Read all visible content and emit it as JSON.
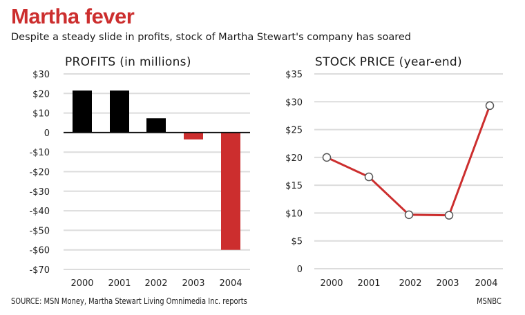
{
  "header": {
    "title": "Martha fever",
    "subtitle": "Despite a steady slide in profits, stock of Martha Stewart's company has soared"
  },
  "footer": {
    "source": "SOURCE: MSN Money, Martha Stewart Living Omnimedia Inc. reports",
    "credit": "MSNBC"
  },
  "colors": {
    "positive_bar": "#000000",
    "negative_bar": "#cc2e2e",
    "line": "#cc2e2e",
    "gridline": "#dcdcdc",
    "title": "#cc2e2e"
  },
  "chart_data": [
    {
      "type": "bar",
      "title": "PROFITS (in millions)",
      "xlabel": "",
      "ylabel": "",
      "categories": [
        "2000",
        "2001",
        "2002",
        "2003",
        "2004"
      ],
      "values": [
        21.5,
        21.5,
        7.3,
        -3.5,
        -60
      ],
      "ylim": [
        -70,
        30
      ],
      "yticks": [
        30,
        20,
        10,
        0,
        -10,
        -20,
        -30,
        -40,
        -50,
        -60,
        -70
      ],
      "ytick_labels": [
        "$30",
        "$20",
        "$10",
        "0",
        "-$10",
        "-$20",
        "-$30",
        "-$40",
        "-$50",
        "-$60",
        "-$70"
      ],
      "grid": true,
      "legend": "none"
    },
    {
      "type": "line",
      "title": "STOCK PRICE (year-end)",
      "xlabel": "",
      "ylabel": "",
      "categories": [
        "2000",
        "2001",
        "2002",
        "2003",
        "2004"
      ],
      "values": [
        20.0,
        16.5,
        9.7,
        9.6,
        29.3
      ],
      "ylim": [
        0,
        35
      ],
      "yticks": [
        35,
        30,
        25,
        20,
        15,
        10,
        5,
        0
      ],
      "ytick_labels": [
        "$35",
        "$30",
        "$25",
        "$20",
        "$15",
        "$10",
        "$5",
        "0"
      ],
      "grid": true,
      "legend": "none"
    }
  ]
}
